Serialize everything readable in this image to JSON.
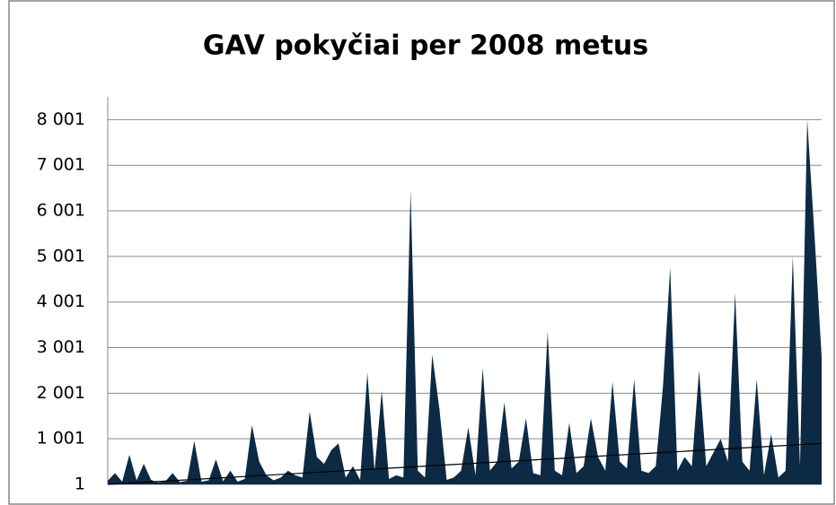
{
  "chart_data": {
    "type": "area",
    "title": "GAV pokyčiai per 2008 metus",
    "values": [
      80,
      250,
      60,
      650,
      90,
      450,
      100,
      40,
      70,
      250,
      50,
      80,
      950,
      60,
      90,
      550,
      70,
      300,
      60,
      120,
      1300,
      500,
      200,
      90,
      150,
      300,
      200,
      150,
      1600,
      600,
      450,
      750,
      900,
      150,
      400,
      100,
      2450,
      300,
      2050,
      120,
      200,
      150,
      6450,
      300,
      150,
      2850,
      1650,
      100,
      150,
      300,
      1250,
      200,
      2550,
      300,
      500,
      1800,
      350,
      500,
      1450,
      250,
      200,
      3350,
      300,
      200,
      1350,
      250,
      400,
      1450,
      600,
      300,
      2250,
      500,
      350,
      2300,
      300,
      250,
      400,
      2150,
      4750,
      300,
      600,
      400,
      2500,
      400,
      700,
      1000,
      500,
      4200,
      500,
      300,
      2300,
      200,
      1100,
      150,
      300,
      5000,
      400,
      8000,
      5500,
      2800
    ],
    "color": "#0d2a44",
    "trendline": [
      1,
      900
    ],
    "trendline_color": "#000000",
    "ylim": [
      1,
      8501
    ],
    "yticks": [
      1,
      {
        "value": 1001,
        "label": "1 001"
      },
      {
        "value": 2001,
        "label": "2 001"
      },
      {
        "value": 3001,
        "label": "3 001"
      },
      {
        "value": 4001,
        "label": "4 001"
      },
      {
        "value": 5001,
        "label": "5 001"
      },
      {
        "value": 6001,
        "label": "6 001"
      },
      {
        "value": 7001,
        "label": "7 001"
      },
      {
        "value": 8001,
        "label": "8 001"
      }
    ],
    "grid": true
  }
}
